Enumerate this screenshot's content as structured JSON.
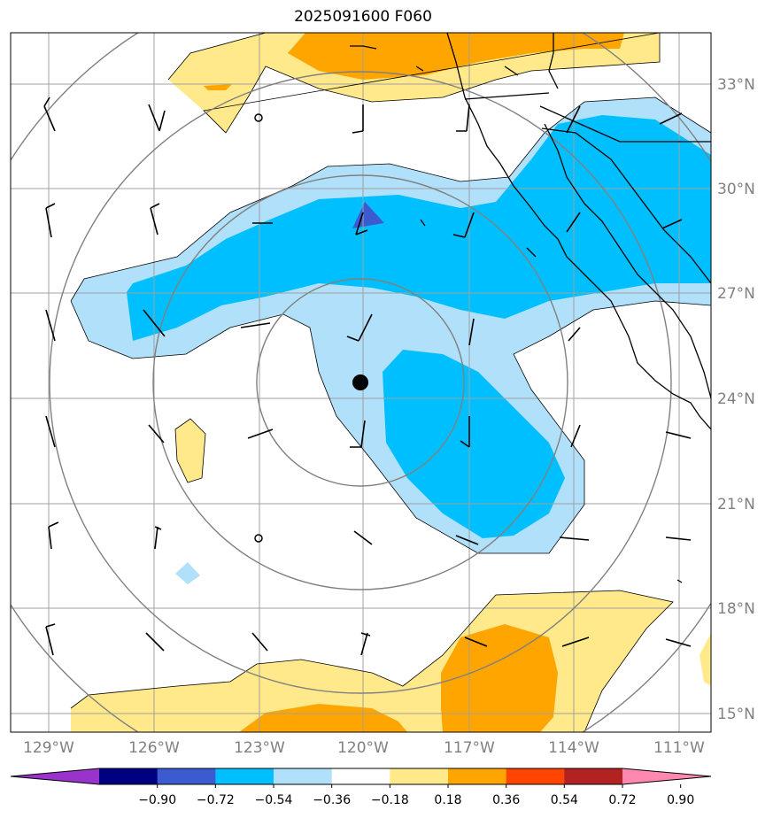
{
  "title": "2025091600 F060",
  "chart_data": {
    "type": "heatmap",
    "title": "2025091600 F060",
    "projection_center": {
      "lon": -120,
      "lat": 24.4
    },
    "lat_ticks": [
      "33°N",
      "30°N",
      "27°N",
      "24°N",
      "21°N",
      "18°N",
      "15°N"
    ],
    "lon_ticks": [
      "129°W",
      "126°W",
      "123°W",
      "120°W",
      "117°W",
      "114°W",
      "111°W"
    ],
    "colorbar": {
      "levels": [
        "−0.90",
        "−0.72",
        "−0.54",
        "−0.36",
        "−0.18",
        "0.18",
        "0.36",
        "0.54",
        "0.72",
        "0.90"
      ],
      "colors": [
        "#9933cc",
        "#000080",
        "#3c5bd1",
        "#00bfff",
        "#b0e0fa",
        "#ffffff",
        "#ffe98a",
        "#ffa500",
        "#ff4500",
        "#b22222",
        "#ff88b0"
      ],
      "extend": "both"
    },
    "range_rings": 4,
    "wind_barbs": true,
    "grid": true
  }
}
